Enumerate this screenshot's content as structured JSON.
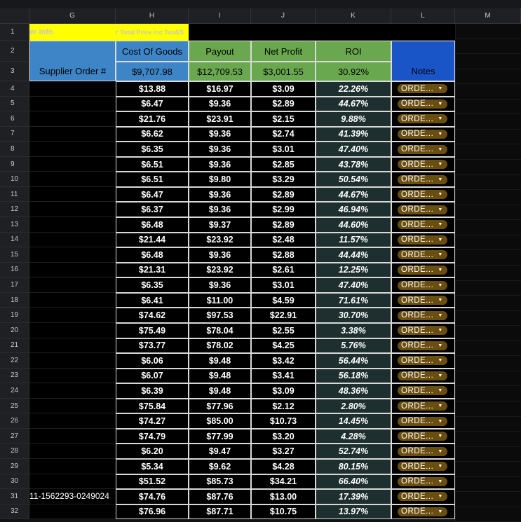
{
  "columns": [
    "G",
    "H",
    "I",
    "J",
    "K",
    "L",
    "M"
  ],
  "header_row1": {
    "G": "er Info",
    "H": "r Total Price inc Tax&S"
  },
  "header_row2": {
    "H": "Cost Of Goods",
    "I": "Payout",
    "J": "Net Profit",
    "K": "ROI"
  },
  "header_row3": {
    "G": "Supplier Order #",
    "H": "$9,707.98",
    "I": "$12,709.53",
    "J": "$3,001.55",
    "K": "30.92%",
    "L": "Notes"
  },
  "note_chip_label": "ORDE...",
  "colors": {
    "yellow": "#ffff00",
    "blue_header": "#3d85c6",
    "green_header": "#6aa84f",
    "notes_header": "#1a55c8",
    "roi_bg": "#1e2f2f",
    "chip_bg": "#6a4e10"
  },
  "rows": [
    {
      "n": "4",
      "supplier": "",
      "cost": "$13.88",
      "payout": "$16.97",
      "profit": "$3.09",
      "roi": "22.26%"
    },
    {
      "n": "5",
      "supplier": "",
      "cost": "$6.47",
      "payout": "$9.36",
      "profit": "$2.89",
      "roi": "44.67%"
    },
    {
      "n": "6",
      "supplier": "",
      "cost": "$21.76",
      "payout": "$23.91",
      "profit": "$2.15",
      "roi": "9.88%"
    },
    {
      "n": "7",
      "supplier": "",
      "cost": "$6.62",
      "payout": "$9.36",
      "profit": "$2.74",
      "roi": "41.39%"
    },
    {
      "n": "8",
      "supplier": "",
      "cost": "$6.35",
      "payout": "$9.36",
      "profit": "$3.01",
      "roi": "47.40%"
    },
    {
      "n": "9",
      "supplier": "",
      "cost": "$6.51",
      "payout": "$9.36",
      "profit": "$2.85",
      "roi": "43.78%"
    },
    {
      "n": "10",
      "supplier": "",
      "cost": "$6.51",
      "payout": "$9.80",
      "profit": "$3.29",
      "roi": "50.54%"
    },
    {
      "n": "11",
      "supplier": "",
      "cost": "$6.47",
      "payout": "$9.36",
      "profit": "$2.89",
      "roi": "44.67%"
    },
    {
      "n": "12",
      "supplier": "",
      "cost": "$6.37",
      "payout": "$9.36",
      "profit": "$2.99",
      "roi": "46.94%"
    },
    {
      "n": "13",
      "supplier": "",
      "cost": "$6.48",
      "payout": "$9.37",
      "profit": "$2.89",
      "roi": "44.60%"
    },
    {
      "n": "14",
      "supplier": "",
      "cost": "$21.44",
      "payout": "$23.92",
      "profit": "$2.48",
      "roi": "11.57%"
    },
    {
      "n": "15",
      "supplier": "",
      "cost": "$6.48",
      "payout": "$9.36",
      "profit": "$2.88",
      "roi": "44.44%"
    },
    {
      "n": "16",
      "supplier": "",
      "cost": "$21.31",
      "payout": "$23.92",
      "profit": "$2.61",
      "roi": "12.25%"
    },
    {
      "n": "17",
      "supplier": "",
      "cost": "$6.35",
      "payout": "$9.36",
      "profit": "$3.01",
      "roi": "47.40%"
    },
    {
      "n": "18",
      "supplier": "",
      "cost": "$6.41",
      "payout": "$11.00",
      "profit": "$4.59",
      "roi": "71.61%"
    },
    {
      "n": "19",
      "supplier": "",
      "cost": "$74.62",
      "payout": "$97.53",
      "profit": "$22.91",
      "roi": "30.70%"
    },
    {
      "n": "20",
      "supplier": "",
      "cost": "$75.49",
      "payout": "$78.04",
      "profit": "$2.55",
      "roi": "3.38%"
    },
    {
      "n": "21",
      "supplier": "",
      "cost": "$73.77",
      "payout": "$78.02",
      "profit": "$4.25",
      "roi": "5.76%"
    },
    {
      "n": "22",
      "supplier": "",
      "cost": "$6.06",
      "payout": "$9.48",
      "profit": "$3.42",
      "roi": "56.44%"
    },
    {
      "n": "23",
      "supplier": "",
      "cost": "$6.07",
      "payout": "$9.48",
      "profit": "$3.41",
      "roi": "56.18%"
    },
    {
      "n": "24",
      "supplier": "",
      "cost": "$6.39",
      "payout": "$9.48",
      "profit": "$3.09",
      "roi": "48.36%"
    },
    {
      "n": "25",
      "supplier": "",
      "cost": "$75.84",
      "payout": "$77.96",
      "profit": "$2.12",
      "roi": "2.80%"
    },
    {
      "n": "26",
      "supplier": "",
      "cost": "$74.27",
      "payout": "$85.00",
      "profit": "$10.73",
      "roi": "14.45%"
    },
    {
      "n": "27",
      "supplier": "",
      "cost": "$74.79",
      "payout": "$77.99",
      "profit": "$3.20",
      "roi": "4.28%"
    },
    {
      "n": "28",
      "supplier": "",
      "cost": "$6.20",
      "payout": "$9.47",
      "profit": "$3.27",
      "roi": "52.74%"
    },
    {
      "n": "29",
      "supplier": "",
      "cost": "$5.34",
      "payout": "$9.62",
      "profit": "$4.28",
      "roi": "80.15%"
    },
    {
      "n": "30",
      "supplier": "",
      "cost": "$51.52",
      "payout": "$85.73",
      "profit": "$34.21",
      "roi": "66.40%"
    },
    {
      "n": "31",
      "supplier": "11-1562293-0249024",
      "cost": "$74.76",
      "payout": "$87.76",
      "profit": "$13.00",
      "roi": "17.39%"
    },
    {
      "n": "32",
      "supplier": "",
      "cost": "$76.96",
      "payout": "$87.71",
      "profit": "$10.75",
      "roi": "13.97%"
    }
  ]
}
